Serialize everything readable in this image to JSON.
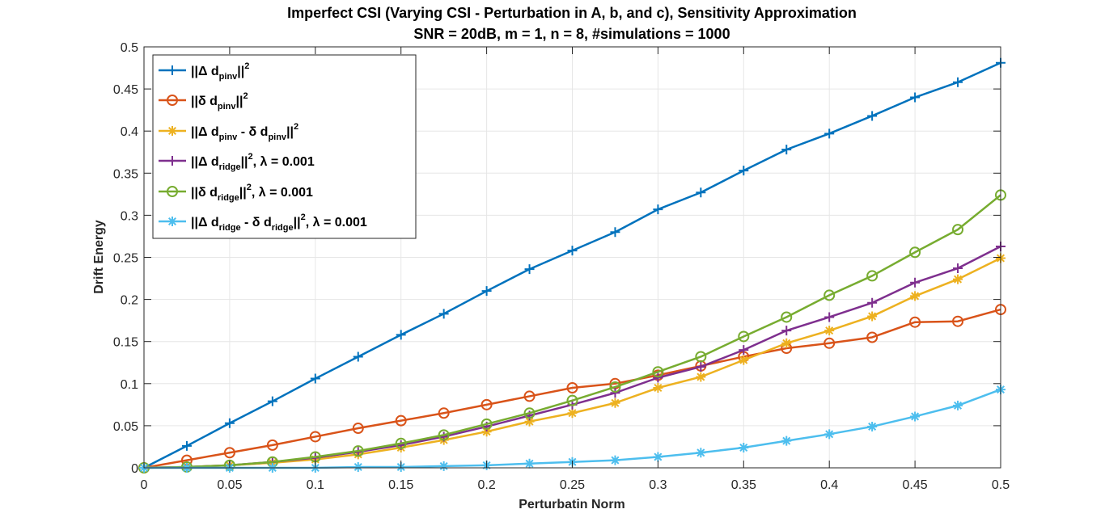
{
  "chart_data": {
    "type": "line",
    "title_line1": "Imperfect CSI (Varying CSI - Perturbation in A, b, and c), Sensitivity Approximation",
    "title_line2": "SNR = 20dB, m = 1, n = 8, #simulations = 1000",
    "xlabel": "Perturbatin Norm",
    "ylabel": "Drift Energy",
    "xlim": [
      0,
      0.5
    ],
    "ylim": [
      0,
      0.5
    ],
    "x_ticks": [
      0,
      0.05,
      0.1,
      0.15,
      0.2,
      0.25,
      0.3,
      0.35,
      0.4,
      0.45,
      0.5
    ],
    "x_tick_labels": [
      "0",
      "0.05",
      "0.1",
      "0.15",
      "0.2",
      "0.25",
      "0.3",
      "0.35",
      "0.4",
      "0.45",
      "0.5"
    ],
    "y_ticks": [
      0,
      0.05,
      0.1,
      0.15,
      0.2,
      0.25,
      0.3,
      0.35,
      0.4,
      0.45,
      0.5
    ],
    "y_tick_labels": [
      "0",
      "0.05",
      "0.1",
      "0.15",
      "0.2",
      "0.25",
      "0.3",
      "0.35",
      "0.4",
      "0.45",
      "0.5"
    ],
    "grid": true,
    "legend_position": "top-left",
    "x": [
      0,
      0.025,
      0.05,
      0.075,
      0.1,
      0.125,
      0.15,
      0.175,
      0.2,
      0.225,
      0.25,
      0.275,
      0.3,
      0.325,
      0.35,
      0.375,
      0.4,
      0.425,
      0.45,
      0.475,
      0.5
    ],
    "series": [
      {
        "name": "||Δ d_pinv||^2",
        "color": "#0072BD",
        "marker": "plus",
        "legend_parts": [
          [
            "||",
            "n"
          ],
          [
            "Δ",
            "n"
          ],
          [
            " d",
            "n"
          ],
          [
            "pinv",
            "sub"
          ],
          [
            "||",
            "n"
          ],
          [
            "2",
            "sup"
          ]
        ],
        "values": [
          0,
          0.026,
          0.053,
          0.079,
          0.106,
          0.132,
          0.158,
          0.183,
          0.21,
          0.236,
          0.258,
          0.28,
          0.307,
          0.327,
          0.353,
          0.378,
          0.397,
          0.418,
          0.44,
          0.458,
          0.481
        ]
      },
      {
        "name": "||δ d_pinv||^2",
        "color": "#D95319",
        "marker": "circle",
        "legend_parts": [
          [
            "||",
            "n"
          ],
          [
            "δ",
            "n"
          ],
          [
            " d",
            "n"
          ],
          [
            "pinv",
            "sub"
          ],
          [
            "||",
            "n"
          ],
          [
            "2",
            "sup"
          ]
        ],
        "values": [
          0,
          0.009,
          0.018,
          0.027,
          0.037,
          0.047,
          0.056,
          0.065,
          0.075,
          0.085,
          0.095,
          0.1,
          0.11,
          0.121,
          0.132,
          0.142,
          0.148,
          0.155,
          0.173,
          0.174,
          0.188
        ]
      },
      {
        "name": "||Δ d_pinv - δ d_pinv||^2",
        "color": "#EDB120",
        "marker": "asterisk",
        "legend_parts": [
          [
            "||",
            "n"
          ],
          [
            "Δ",
            "n"
          ],
          [
            " d",
            "n"
          ],
          [
            "pinv",
            "sub"
          ],
          [
            " - ",
            "n"
          ],
          [
            "δ",
            "n"
          ],
          [
            " d",
            "n"
          ],
          [
            "pinv",
            "sub"
          ],
          [
            "||",
            "n"
          ],
          [
            "2",
            "sup"
          ]
        ],
        "values": [
          0,
          0.001,
          0.003,
          0.006,
          0.01,
          0.016,
          0.024,
          0.033,
          0.043,
          0.055,
          0.065,
          0.077,
          0.095,
          0.108,
          0.128,
          0.148,
          0.163,
          0.18,
          0.204,
          0.224,
          0.249
        ]
      },
      {
        "name": "||Δ d_ridge||^2, λ = 0.001",
        "color": "#7E2F8E",
        "marker": "plus",
        "legend_parts": [
          [
            "||",
            "n"
          ],
          [
            "Δ",
            "n"
          ],
          [
            " d",
            "n"
          ],
          [
            "ridge",
            "sub"
          ],
          [
            "||",
            "n"
          ],
          [
            "2",
            "sup"
          ],
          [
            ", ",
            "n"
          ],
          [
            "λ",
            "n"
          ],
          [
            " = 0.001",
            "n"
          ]
        ],
        "values": [
          0,
          0.001,
          0.003,
          0.007,
          0.012,
          0.019,
          0.027,
          0.037,
          0.049,
          0.062,
          0.075,
          0.089,
          0.107,
          0.12,
          0.14,
          0.163,
          0.179,
          0.196,
          0.22,
          0.237,
          0.263
        ]
      },
      {
        "name": "||δ d_ridge||^2, λ = 0.001",
        "color": "#77AC30",
        "marker": "circle",
        "legend_parts": [
          [
            "||",
            "n"
          ],
          [
            "δ",
            "n"
          ],
          [
            " d",
            "n"
          ],
          [
            "ridge",
            "sub"
          ],
          [
            "||",
            "n"
          ],
          [
            "2",
            "sup"
          ],
          [
            ", ",
            "n"
          ],
          [
            "λ",
            "n"
          ],
          [
            " = 0.001",
            "n"
          ]
        ],
        "values": [
          0,
          0.001,
          0.003,
          0.007,
          0.013,
          0.02,
          0.029,
          0.039,
          0.052,
          0.065,
          0.08,
          0.096,
          0.114,
          0.132,
          0.156,
          0.179,
          0.205,
          0.228,
          0.256,
          0.283,
          0.324
        ]
      },
      {
        "name": "||Δ d_ridge - δ d_ridge||^2, λ = 0.001",
        "color": "#4DBEEE",
        "marker": "asterisk",
        "legend_parts": [
          [
            "||",
            "n"
          ],
          [
            "Δ",
            "n"
          ],
          [
            " d",
            "n"
          ],
          [
            "ridge",
            "sub"
          ],
          [
            " - ",
            "n"
          ],
          [
            "δ",
            "n"
          ],
          [
            " d",
            "n"
          ],
          [
            "ridge",
            "sub"
          ],
          [
            "||",
            "n"
          ],
          [
            "2",
            "sup"
          ],
          [
            ", ",
            "n"
          ],
          [
            "λ",
            "n"
          ],
          [
            " = 0.001",
            "n"
          ]
        ],
        "values": [
          0,
          0,
          0,
          0,
          0,
          0.001,
          0.001,
          0.002,
          0.003,
          0.005,
          0.007,
          0.009,
          0.013,
          0.018,
          0.024,
          0.032,
          0.04,
          0.049,
          0.061,
          0.074,
          0.093
        ]
      }
    ]
  }
}
